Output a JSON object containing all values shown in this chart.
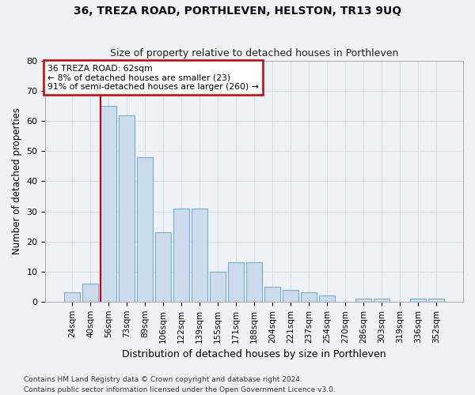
{
  "title": "36, TREZA ROAD, PORTHLEVEN, HELSTON, TR13 9UQ",
  "subtitle": "Size of property relative to detached houses in Porthleven",
  "xlabel": "Distribution of detached houses by size in Porthleven",
  "ylabel": "Number of detached properties",
  "categories": [
    "24sqm",
    "40sqm",
    "56sqm",
    "73sqm",
    "89sqm",
    "106sqm",
    "122sqm",
    "139sqm",
    "155sqm",
    "171sqm",
    "188sqm",
    "204sqm",
    "221sqm",
    "237sqm",
    "254sqm",
    "270sqm",
    "286sqm",
    "303sqm",
    "319sqm",
    "336sqm",
    "352sqm"
  ],
  "values": [
    3,
    6,
    65,
    62,
    48,
    23,
    31,
    31,
    10,
    13,
    13,
    5,
    4,
    3,
    2,
    0,
    1,
    1,
    0,
    1,
    1
  ],
  "bar_color": "#ccdcec",
  "bar_edge_color": "#7aaac8",
  "grid_color": "#d0d8e0",
  "annotation_text_1": "36 TREZA ROAD: 62sqm",
  "annotation_text_2": "← 8% of detached houses are smaller (23)",
  "annotation_text_3": "91% of semi-detached houses are larger (260) →",
  "annotation_box_color": "#ffffff",
  "annotation_box_edge": "#cc0000",
  "vline_color": "#cc0000",
  "vline_x_index": 2,
  "ylim": [
    0,
    80
  ],
  "yticks": [
    0,
    10,
    20,
    30,
    40,
    50,
    60,
    70,
    80
  ],
  "footnote1": "Contains HM Land Registry data © Crown copyright and database right 2024.",
  "footnote2": "Contains public sector information licensed under the Open Government Licence v3.0.",
  "bg_color": "#eef2f7"
}
